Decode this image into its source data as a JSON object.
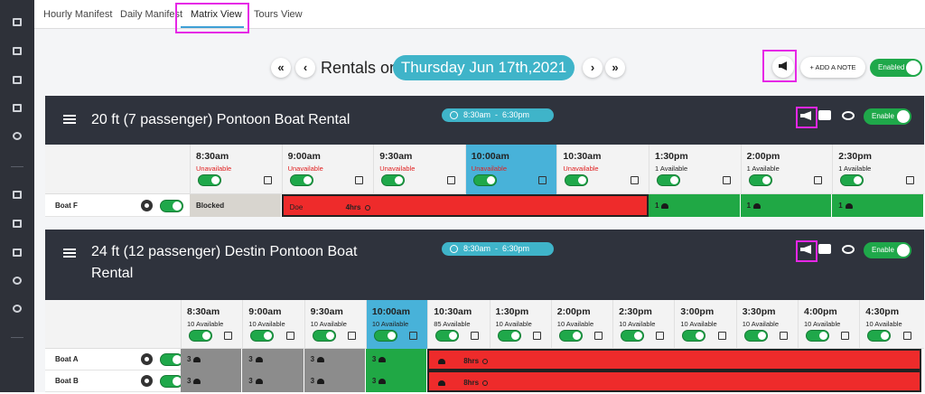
{
  "tabs": [
    "Hourly Manifest",
    "Daily Manifest",
    "Matrix View",
    "Tours View"
  ],
  "nav": {
    "label": "Rentals on",
    "date": "Thursday Jun 17th,2021"
  },
  "toolbar": {
    "add_note": "ADD A NOTE",
    "toggle": "Enabled"
  },
  "panels": [
    {
      "title": "20 ft (7 passenger) Pontoon Boat Rental",
      "hours": "8:30am  -  6:30pm",
      "toggle": "Enable",
      "slots": [
        {
          "time": "8:30am",
          "status": "Unavailable"
        },
        {
          "time": "9:00am",
          "status": "Unavailable"
        },
        {
          "time": "9:30am",
          "status": "Unavailable"
        },
        {
          "time": "10:00am",
          "status": "Unavailable",
          "selected": true
        },
        {
          "time": "10:30am",
          "status": "Unavailable"
        },
        {
          "time": "1:30pm",
          "status": "1 Available"
        },
        {
          "time": "2:00pm",
          "status": "1 Available"
        },
        {
          "time": "2:30pm",
          "status": "1 Available"
        }
      ],
      "rows": [
        {
          "name": "Boat F",
          "cells": [
            {
              "label": "Blocked",
              "color": "#d8d5cf",
              "span": 1
            },
            {
              "label": "Doe",
              "duration": "4hrs",
              "color": "#ee2b2b",
              "span": 4
            },
            {
              "count": "1",
              "color": "#20a845",
              "span": 1
            },
            {
              "count": "1",
              "color": "#20a845",
              "span": 1
            },
            {
              "count": "1",
              "color": "#20a845",
              "span": 1
            }
          ]
        }
      ]
    },
    {
      "title": "24 ft (12 passenger) Destin Pontoon Boat Rental",
      "hours": "8:30am  -  6:30pm",
      "toggle": "Enable",
      "slots": [
        {
          "time": "8:30am",
          "status": "10 Available"
        },
        {
          "time": "9:00am",
          "status": "10 Available"
        },
        {
          "time": "9:30am",
          "status": "10 Available"
        },
        {
          "time": "10:00am",
          "status": "10 Available",
          "selected": true
        },
        {
          "time": "10:30am",
          "status": "85 Available"
        },
        {
          "time": "1:30pm",
          "status": "10 Available"
        },
        {
          "time": "2:00pm",
          "status": "10 Available"
        },
        {
          "time": "2:30pm",
          "status": "10 Available"
        },
        {
          "time": "3:00pm",
          "status": "10 Available"
        },
        {
          "time": "3:30pm",
          "status": "10 Available"
        },
        {
          "time": "4:00pm",
          "status": "10 Available"
        },
        {
          "time": "4:30pm",
          "status": "10 Available"
        }
      ],
      "rows": [
        {
          "name": "Boat A",
          "cells": [
            {
              "count": "3",
              "color": "#8c8c8c",
              "span": 1
            },
            {
              "count": "3",
              "color": "#8c8c8c",
              "span": 1
            },
            {
              "count": "3",
              "color": "#8c8c8c",
              "span": 1
            },
            {
              "count": "3",
              "color": "#20a845",
              "span": 1
            },
            {
              "duration": "8hrs",
              "color": "#ee2b2b",
              "span": 8
            }
          ]
        },
        {
          "name": "Boat B",
          "cells": [
            {
              "count": "3",
              "color": "#8c8c8c",
              "span": 1
            },
            {
              "count": "3",
              "color": "#8c8c8c",
              "span": 1
            },
            {
              "count": "3",
              "color": "#8c8c8c",
              "span": 1
            },
            {
              "count": "3",
              "color": "#20a845",
              "span": 1
            },
            {
              "duration": "8hrs",
              "color": "#ee2b2b",
              "span": 8
            }
          ]
        }
      ]
    }
  ]
}
